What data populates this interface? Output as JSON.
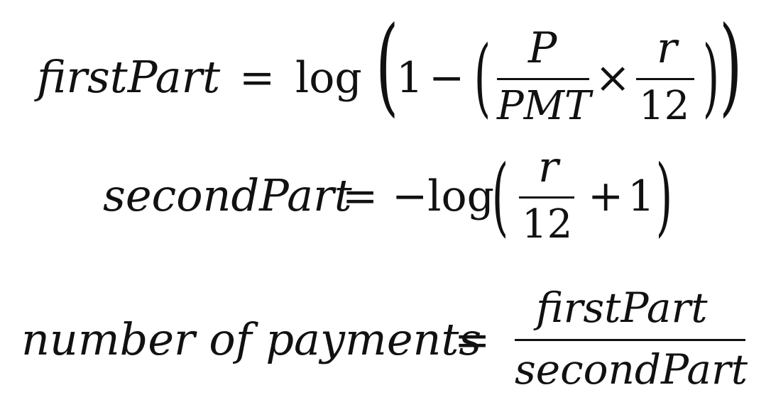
{
  "equations": {
    "first": {
      "lhs": "firstPart",
      "equals": "=",
      "log": "log",
      "one": "1",
      "minus": "−",
      "frac1_num": "P",
      "frac1_den": "PMT",
      "times": "×",
      "frac2_num": "r",
      "frac2_den": "12"
    },
    "second": {
      "lhs": "secondPart",
      "equals": "=",
      "neg_log": "−log",
      "frac_num": "r",
      "frac_den": "12",
      "plus": "+",
      "one": "1"
    },
    "third": {
      "lhs": "number of payments",
      "equals": "=",
      "frac_num": "firstPart",
      "frac_den": "secondPart"
    }
  }
}
